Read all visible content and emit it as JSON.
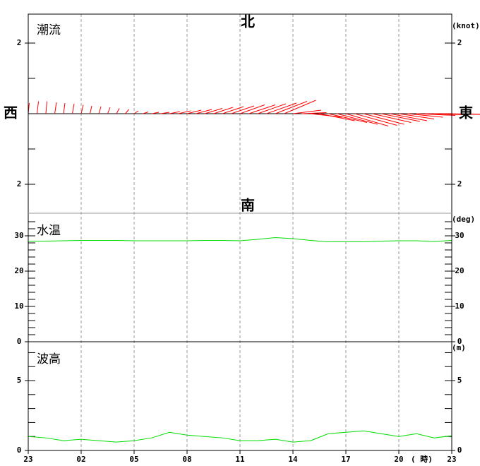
{
  "chart_data": [
    {
      "type": "vector",
      "title": "潮流",
      "unit": "(knot)",
      "directions": {
        "north": "北",
        "south": "南",
        "west": "西",
        "east": "東"
      },
      "color": "#ff0000",
      "east": [
        0.03,
        0.04,
        0.03,
        0.05,
        0.04,
        0.05,
        0.06,
        0.05,
        0.06,
        0.07,
        0.08,
        0.1,
        0.12,
        0.15,
        0.2,
        0.25,
        0.3,
        0.35,
        0.4,
        0.45,
        0.5,
        0.55,
        0.6,
        0.65,
        0.7,
        0.75,
        0.8,
        0.85,
        0.9,
        0.9,
        0.8,
        0.7,
        0.9,
        1.0,
        1.1,
        1.15,
        1.2,
        1.2,
        1.15,
        1.1,
        1.1,
        1.05,
        1.0,
        1.0,
        1.1,
        1.2,
        1.3,
        1.3
      ],
      "north": [
        0.3,
        0.35,
        0.35,
        0.32,
        0.3,
        0.28,
        0.25,
        0.22,
        0.2,
        0.18,
        0.15,
        0.12,
        0.08,
        0.05,
        0.04,
        0.04,
        0.06,
        0.08,
        0.1,
        0.12,
        0.15,
        0.18,
        0.2,
        0.22,
        0.25,
        0.25,
        0.28,
        0.3,
        0.35,
        0.38,
        0.1,
        0.03,
        -0.1,
        -0.2,
        -0.25,
        -0.3,
        -0.35,
        -0.33,
        -0.3,
        -0.25,
        -0.22,
        -0.2,
        -0.15,
        -0.1,
        -0.05,
        -0.03,
        -0.02,
        -0.02
      ],
      "ylim": [
        -2.82,
        2.82
      ],
      "yticks": [
        2,
        {
          "value": -2,
          "label": "2"
        }
      ],
      "yminor": [
        1,
        0,
        -1
      ]
    },
    {
      "type": "line",
      "title": "水温",
      "unit": "(deg)",
      "color": "#00dd00",
      "values": [
        28.5,
        28.5,
        28.6,
        28.7,
        28.7,
        28.7,
        28.6,
        28.6,
        28.6,
        28.6,
        28.7,
        28.7,
        28.6,
        29.0,
        29.5,
        29.2,
        28.7,
        28.3,
        28.3,
        28.3,
        28.5,
        28.6,
        28.6,
        28.4,
        28.7
      ],
      "ylim": [
        0,
        36.4
      ],
      "yticks": [
        0,
        10,
        20,
        30
      ],
      "yminor": [
        2,
        4,
        6,
        8,
        12,
        14,
        16,
        18,
        22,
        24,
        26,
        28,
        32,
        34
      ]
    },
    {
      "type": "line",
      "title": "波高",
      "unit": "(m)",
      "color": "#00dd00",
      "values": [
        1.0,
        0.9,
        0.7,
        0.8,
        0.7,
        0.6,
        0.7,
        0.9,
        1.3,
        1.1,
        1.0,
        0.9,
        0.7,
        0.7,
        0.8,
        0.6,
        0.7,
        1.2,
        1.3,
        1.4,
        1.2,
        1.0,
        1.2,
        0.9,
        1.05
      ],
      "ylim": [
        0,
        7.78
      ],
      "yticks": [
        0,
        5
      ],
      "yminor": [
        1,
        2,
        3,
        4,
        6,
        7
      ]
    }
  ],
  "x_axis": {
    "ticks": [
      "23",
      "02",
      "05",
      "08",
      "11",
      "14",
      "17",
      "20",
      "23"
    ],
    "unit": "( 時)"
  }
}
